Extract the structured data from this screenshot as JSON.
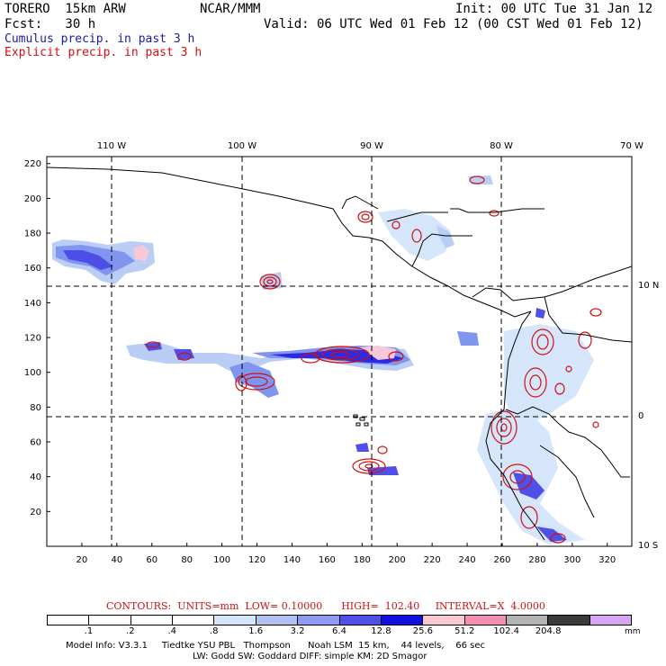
{
  "header": {
    "model_name": "TORERO  15km ARW",
    "org": "NCAR/MMM",
    "init": "Init: 00 UTC Tue 31 Jan 12",
    "fcst": "Fcst:   30 h",
    "valid": "Valid: 06 UTC Wed 01 Feb 12 (00 CST Wed 01 Feb 12)",
    "field1": "Cumulus precip. in past 3 h",
    "field2": "Explicit precip. in past 3 h"
  },
  "map": {
    "top_lon_labels": [
      "110 W",
      "100 W",
      "90 W",
      "80 W",
      "70 W"
    ],
    "right_lat_labels": [
      "10 N",
      "0",
      "10 S"
    ],
    "left_y_ticks": [
      20,
      40,
      60,
      80,
      100,
      120,
      140,
      160,
      180,
      200,
      220
    ],
    "bottom_x_ticks": [
      20,
      40,
      60,
      80,
      100,
      120,
      140,
      160,
      180,
      200,
      220,
      240,
      260,
      280,
      300,
      320
    ],
    "colors": {
      "cumulus_light": "#b9cdf5",
      "cumulus_mid": "#7f95f0",
      "cumulus_dark": "#2a2ae8",
      "explicit_contour": "#d01010",
      "pink": "#f7c8d8"
    }
  },
  "legend": {
    "contours": "CONTOURS:  UNITS=mm  LOW= 0.10000      HIGH=  102.40     INTERVAL=X  4.0000",
    "bins": [
      {
        "label": ".1",
        "color": "#ffffff"
      },
      {
        "label": ".2",
        "color": "#ffffff"
      },
      {
        "label": ".4",
        "color": "#ffffff"
      },
      {
        "label": ".8",
        "color": "#ffffff"
      },
      {
        "label": "1.6",
        "color": "#d6e6fa"
      },
      {
        "label": "3.2",
        "color": "#b3c0f2"
      },
      {
        "label": "6.4",
        "color": "#8f99ef"
      },
      {
        "label": "12.8",
        "color": "#5050e8"
      },
      {
        "label": "25.6",
        "color": "#1010e0"
      },
      {
        "label": "51.2",
        "color": "#f9c9cf"
      },
      {
        "label": "102.4",
        "color": "#f48fb5"
      },
      {
        "label": "204.8",
        "color": "#b3b3b3"
      },
      {
        "label": "",
        "color": "#3a3a3a"
      },
      {
        "label": "",
        "color": "#d7a6f2"
      }
    ],
    "unit": "mm"
  },
  "model_info": {
    "line1": "Model Info: V3.3.1     Tiedtke YSU PBL   Thompson      Noah LSM  15 km,    44 levels,    66 sec",
    "line2": "LW: Godd SW: Goddard DIFF: simple KM: 2D Smagor"
  }
}
